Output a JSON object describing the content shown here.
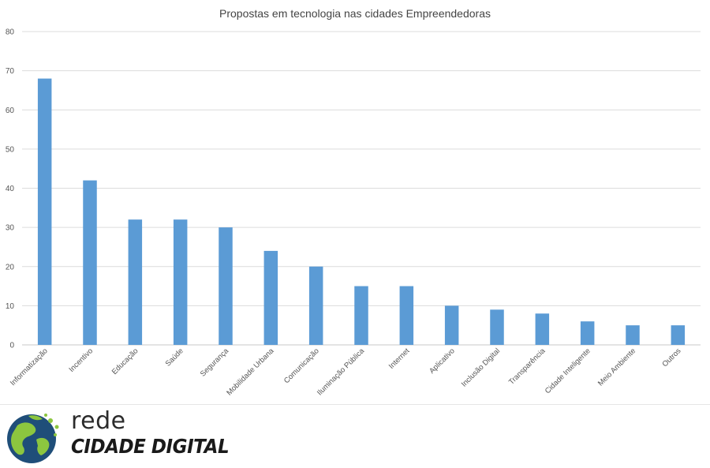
{
  "chart_data": {
    "type": "bar",
    "title": "Propostas em tecnologia nas cidades Empreendedoras",
    "xlabel": "",
    "ylabel": "",
    "ylim": [
      0,
      80
    ],
    "yticks": [
      0,
      10,
      20,
      30,
      40,
      50,
      60,
      70,
      80
    ],
    "grid": true,
    "legend": "none",
    "bar_color": "#5b9bd5",
    "categories": [
      "Informatização",
      "Incentivo",
      "Educação",
      "Saúde",
      "Segurança",
      "Mobilidade Urbana",
      "Comunicação",
      "Iluminação Pública",
      "Internet",
      "Aplicativo",
      "Inclusão Digital",
      "Transparência",
      "Cidade Inteligente",
      "Meio Ambiente",
      "Outros"
    ],
    "values": [
      68,
      42,
      32,
      32,
      30,
      24,
      20,
      15,
      15,
      10,
      9,
      8,
      6,
      5,
      5
    ]
  },
  "logo": {
    "line1": "rede",
    "line2": "CIDADE DIGITAL",
    "colors": {
      "globe": "#1f4e79",
      "land": "#8cc63f",
      "text": "#1a1a1a"
    }
  }
}
